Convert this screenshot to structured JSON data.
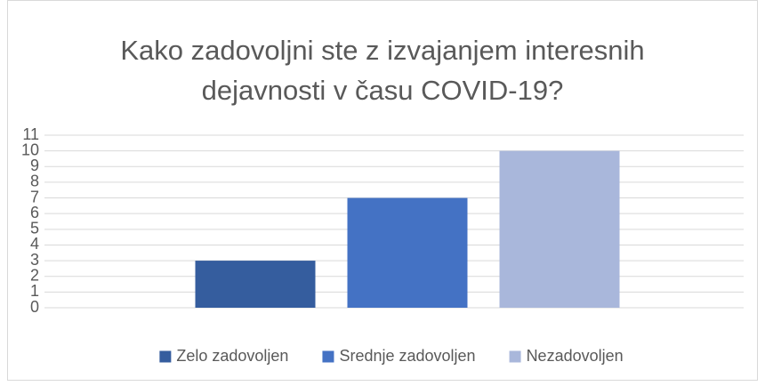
{
  "chart_data": {
    "type": "bar",
    "title": "Kako zadovoljni ste z izvajanjem interesnih dejavnosti v času COVID-19?",
    "categories": [
      null
    ],
    "series": [
      {
        "name": "Zelo zadovoljen",
        "color": "#355d9e",
        "values": [
          3
        ]
      },
      {
        "name": "Srednje zadovoljen",
        "color": "#4472c4",
        "values": [
          7
        ]
      },
      {
        "name": "Nezadovoljen",
        "color": "#a9b7db",
        "values": [
          10
        ]
      }
    ],
    "ylim": [
      0,
      11
    ],
    "yticks": [
      0,
      1,
      2,
      3,
      4,
      5,
      6,
      7,
      8,
      9,
      10,
      11
    ],
    "grid": true,
    "legend": "bottom"
  }
}
